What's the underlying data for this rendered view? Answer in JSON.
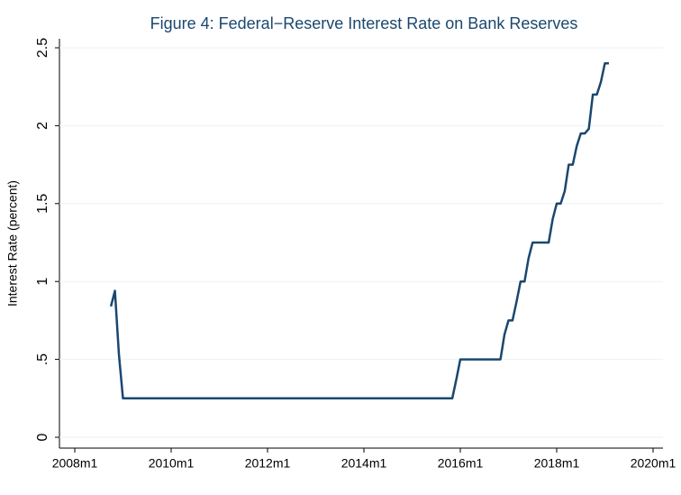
{
  "chart_data": {
    "type": "line",
    "title": "Figure 4: Federal−Reserve Interest Rate on Bank Reserves",
    "ylabel": "Interest Rate (percent)",
    "color": "#1a476f",
    "grid": true,
    "x": [
      "2008m10",
      "2008m11",
      "2008m12",
      "2009m1",
      "2009m2",
      "2009m3",
      "2009m4",
      "2009m5",
      "2009m6",
      "2009m7",
      "2009m8",
      "2009m9",
      "2009m10",
      "2009m11",
      "2009m12",
      "2010m1",
      "2010m2",
      "2010m3",
      "2010m4",
      "2010m5",
      "2010m6",
      "2010m7",
      "2010m8",
      "2010m9",
      "2010m10",
      "2010m11",
      "2010m12",
      "2011m1",
      "2011m2",
      "2011m3",
      "2011m4",
      "2011m5",
      "2011m6",
      "2011m7",
      "2011m8",
      "2011m9",
      "2011m10",
      "2011m11",
      "2011m12",
      "2012m1",
      "2012m2",
      "2012m3",
      "2012m4",
      "2012m5",
      "2012m6",
      "2012m7",
      "2012m8",
      "2012m9",
      "2012m10",
      "2012m11",
      "2012m12",
      "2013m1",
      "2013m2",
      "2013m3",
      "2013m4",
      "2013m5",
      "2013m6",
      "2013m7",
      "2013m8",
      "2013m9",
      "2013m10",
      "2013m11",
      "2013m12",
      "2014m1",
      "2014m2",
      "2014m3",
      "2014m4",
      "2014m5",
      "2014m6",
      "2014m7",
      "2014m8",
      "2014m9",
      "2014m10",
      "2014m11",
      "2014m12",
      "2015m1",
      "2015m2",
      "2015m3",
      "2015m4",
      "2015m5",
      "2015m6",
      "2015m7",
      "2015m8",
      "2015m9",
      "2015m10",
      "2015m11",
      "2015m12",
      "2016m1",
      "2016m2",
      "2016m3",
      "2016m4",
      "2016m5",
      "2016m6",
      "2016m7",
      "2016m8",
      "2016m9",
      "2016m10",
      "2016m11",
      "2016m12",
      "2017m1",
      "2017m2",
      "2017m3",
      "2017m4",
      "2017m5",
      "2017m6",
      "2017m7",
      "2017m8",
      "2017m9",
      "2017m10",
      "2017m11",
      "2017m12",
      "2018m1",
      "2018m2",
      "2018m3",
      "2018m4",
      "2018m5",
      "2018m6",
      "2018m7",
      "2018m8",
      "2018m9",
      "2018m10",
      "2018m11",
      "2018m12",
      "2019m1",
      "2019m2"
    ],
    "values": [
      0.84,
      0.94,
      0.53,
      0.25,
      0.25,
      0.25,
      0.25,
      0.25,
      0.25,
      0.25,
      0.25,
      0.25,
      0.25,
      0.25,
      0.25,
      0.25,
      0.25,
      0.25,
      0.25,
      0.25,
      0.25,
      0.25,
      0.25,
      0.25,
      0.25,
      0.25,
      0.25,
      0.25,
      0.25,
      0.25,
      0.25,
      0.25,
      0.25,
      0.25,
      0.25,
      0.25,
      0.25,
      0.25,
      0.25,
      0.25,
      0.25,
      0.25,
      0.25,
      0.25,
      0.25,
      0.25,
      0.25,
      0.25,
      0.25,
      0.25,
      0.25,
      0.25,
      0.25,
      0.25,
      0.25,
      0.25,
      0.25,
      0.25,
      0.25,
      0.25,
      0.25,
      0.25,
      0.25,
      0.25,
      0.25,
      0.25,
      0.25,
      0.25,
      0.25,
      0.25,
      0.25,
      0.25,
      0.25,
      0.25,
      0.25,
      0.25,
      0.25,
      0.25,
      0.25,
      0.25,
      0.25,
      0.25,
      0.25,
      0.25,
      0.25,
      0.25,
      0.37,
      0.5,
      0.5,
      0.5,
      0.5,
      0.5,
      0.5,
      0.5,
      0.5,
      0.5,
      0.5,
      0.5,
      0.66,
      0.75,
      0.75,
      0.87,
      1.0,
      1.0,
      1.15,
      1.25,
      1.25,
      1.25,
      1.25,
      1.25,
      1.4,
      1.5,
      1.5,
      1.58,
      1.75,
      1.75,
      1.87,
      1.95,
      1.95,
      1.98,
      2.2,
      2.2,
      2.28,
      2.4,
      2.4
    ],
    "xlim": [
      "2008m1",
      "2020m1"
    ],
    "xticks": [
      "2008m1",
      "2010m1",
      "2012m1",
      "2014m1",
      "2016m1",
      "2018m1",
      "2020m1"
    ],
    "ylim": [
      0,
      2.5
    ],
    "yticks": [
      0,
      {
        "value": 0.5,
        "label": ".5"
      },
      1,
      1.5,
      2,
      2.5
    ]
  }
}
